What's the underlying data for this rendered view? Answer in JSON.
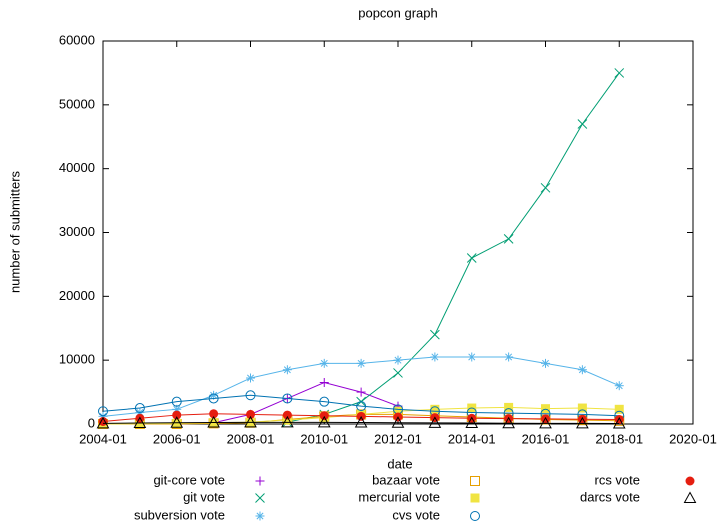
{
  "chart_data": {
    "type": "line",
    "title": "popcon graph",
    "x_label": "date",
    "y_label": "number of submitters",
    "x": [
      "2004-01",
      "2005-01",
      "2006-01",
      "2007-01",
      "2008-01",
      "2009-01",
      "2010-01",
      "2011-01",
      "2012-01",
      "2013-01",
      "2014-01",
      "2015-01",
      "2016-01",
      "2017-01",
      "2018-01"
    ],
    "series": [
      {
        "name": "git-core vote",
        "color": "#9400d3",
        "marker": "plus",
        "values": [
          0,
          0,
          0,
          200,
          1500,
          4000,
          6500,
          5000,
          2800,
          null,
          null,
          null,
          null,
          null,
          null
        ]
      },
      {
        "name": "git vote",
        "color": "#009e73",
        "marker": "cross",
        "values": [
          null,
          null,
          null,
          null,
          null,
          300,
          1500,
          3500,
          8000,
          14000,
          26000,
          29000,
          37000,
          47000,
          55000
        ]
      },
      {
        "name": "subversion vote",
        "color": "#56b4e9",
        "marker": "star",
        "values": [
          1200,
          1800,
          2300,
          4500,
          7200,
          8500,
          9500,
          9500,
          10000,
          10500,
          10500,
          10500,
          9500,
          8500,
          6000
        ]
      },
      {
        "name": "bazaar vote",
        "color": "#e69f00",
        "marker": "square-open",
        "values": [
          0,
          0,
          0,
          100,
          200,
          700,
          1200,
          1500,
          1500,
          1300,
          1100,
          900,
          700,
          600,
          500
        ]
      },
      {
        "name": "mercurial vote",
        "color": "#f0e442",
        "marker": "square-filled",
        "values": [
          0,
          50,
          100,
          200,
          300,
          600,
          1000,
          1500,
          2000,
          2300,
          2500,
          2600,
          2400,
          2500,
          2300
        ]
      },
      {
        "name": "cvs vote",
        "color": "#0072b2",
        "marker": "circle-open",
        "values": [
          2000,
          2500,
          3500,
          4000,
          4500,
          4000,
          3500,
          2800,
          2300,
          2000,
          1800,
          1700,
          1600,
          1500,
          1300
        ]
      },
      {
        "name": "rcs vote",
        "color": "#e51e10",
        "marker": "circle-filled",
        "values": [
          400,
          900,
          1400,
          1600,
          1500,
          1400,
          1300,
          1200,
          1100,
          1000,
          900,
          850,
          800,
          750,
          700
        ]
      },
      {
        "name": "darcs vote",
        "color": "#000000",
        "marker": "triangle-open",
        "values": [
          100,
          150,
          200,
          230,
          250,
          250,
          250,
          230,
          200,
          180,
          150,
          120,
          100,
          90,
          80
        ]
      }
    ],
    "xlim": [
      "2004-01",
      "2020-01"
    ],
    "xticks": [
      "2004-01",
      "2006-01",
      "2008-01",
      "2010-01",
      "2012-01",
      "2014-01",
      "2016-01",
      "2018-01",
      "2020-01"
    ],
    "ylim": [
      0,
      60000
    ],
    "yticks": [
      0,
      10000,
      20000,
      30000,
      40000,
      50000,
      60000
    ],
    "legend": "below"
  }
}
